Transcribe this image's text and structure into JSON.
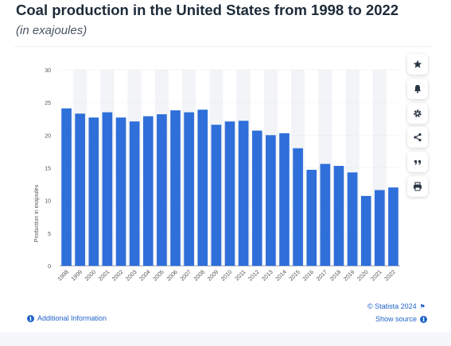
{
  "header": {
    "title": "Coal production in the United States from 1998 to 2022",
    "subtitle": "(in exajoules)"
  },
  "sidebar": {
    "buttons": [
      {
        "name": "star-icon"
      },
      {
        "name": "bell-icon"
      },
      {
        "name": "gear-icon"
      },
      {
        "name": "share-icon"
      },
      {
        "name": "quote-icon"
      },
      {
        "name": "print-icon"
      }
    ]
  },
  "footer": {
    "additional_info": "Additional Information",
    "copyright": "© Statista 2024",
    "show_source": "Show source"
  },
  "colors": {
    "bar": "#2f6fd9",
    "stripe": "#f2f4f7",
    "grid": "#d6dbe2",
    "link": "#1f63c9"
  },
  "chart_data": {
    "type": "bar",
    "ylabel": "Production in exajoules",
    "ylim": [
      0,
      30
    ],
    "yticks": [
      0,
      5,
      10,
      15,
      20,
      25,
      30
    ],
    "categories": [
      "1998",
      "1999",
      "2000",
      "2001",
      "2002",
      "2003",
      "2004",
      "2005",
      "2006",
      "2007",
      "2008",
      "2009",
      "2010",
      "2011",
      "2012",
      "2013",
      "2014",
      "2015",
      "2016",
      "2017",
      "2018",
      "2019",
      "2020",
      "2021",
      "2022"
    ],
    "values": [
      24.1,
      23.3,
      22.7,
      23.5,
      22.7,
      22.1,
      22.9,
      23.2,
      23.8,
      23.5,
      23.9,
      21.6,
      22.1,
      22.2,
      20.7,
      20.0,
      20.3,
      18.0,
      14.7,
      15.6,
      15.3,
      14.3,
      10.7,
      11.6,
      12.0
    ]
  }
}
